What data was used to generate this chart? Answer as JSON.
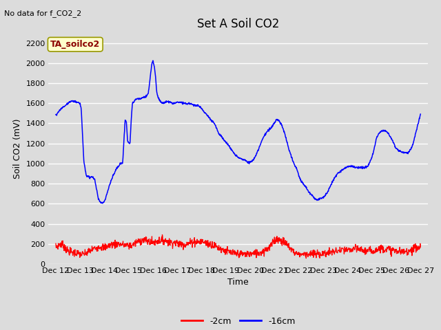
{
  "title": "Set A Soil CO2",
  "top_left_text": "No data for f_CO2_2",
  "annotation_box": "TA_soilco2",
  "ylabel": "Soil CO2 (mV)",
  "xlabel": "Time",
  "ylim": [
    0,
    2300
  ],
  "yticks": [
    0,
    200,
    400,
    600,
    800,
    1000,
    1200,
    1400,
    1600,
    1800,
    2000,
    2200
  ],
  "xtick_labels": [
    "Dec 12",
    "Dec 13",
    "Dec 14",
    "Dec 15",
    "Dec 16",
    "Dec 17",
    "Dec 18",
    "Dec 19",
    "Dec 20",
    "Dec 21",
    "Dec 22",
    "Dec 23",
    "Dec 24",
    "Dec 25",
    "Dec 26",
    "Dec 27"
  ],
  "line1_color": "#ff0000",
  "line2_color": "#0000ff",
  "legend_labels": [
    "-2cm",
    "-16cm"
  ],
  "background_color": "#dcdcdc",
  "plot_bg_color": "#dcdcdc",
  "grid_color": "#ffffff",
  "title_fontsize": 12,
  "label_fontsize": 9,
  "tick_fontsize": 8,
  "annot_fontsize": 9
}
